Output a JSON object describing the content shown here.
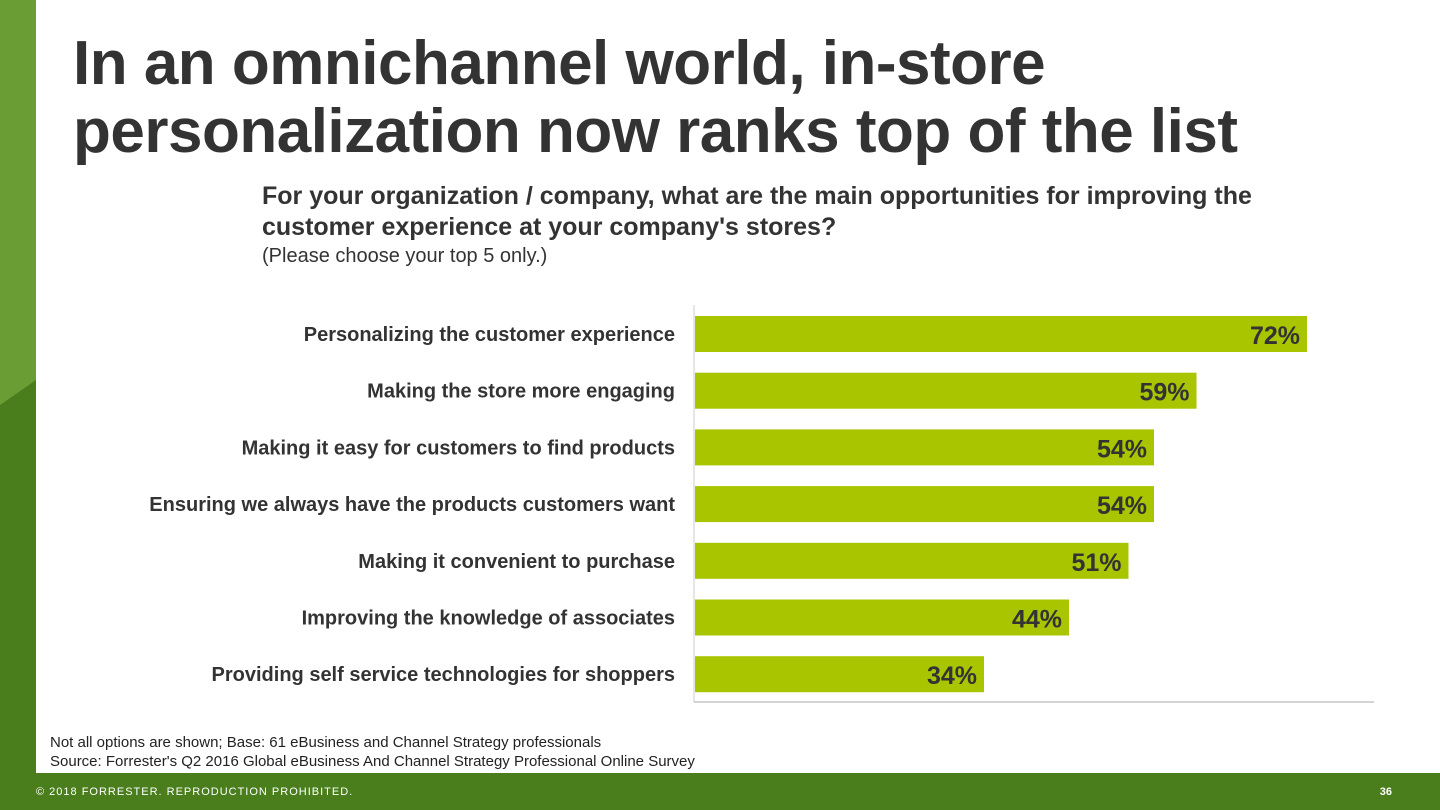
{
  "title": "In an omnichannel world, in-store personalization now ranks top of the list",
  "question": "For your organization / company, what are the main opportunities for improving the customer experience at your company's stores?",
  "question_note": "(Please choose your top 5 only.)",
  "footnote": "Not all options are shown; Base: 61 eBusiness and Channel Strategy professionals",
  "source": "Source: Forrester's Q2 2016 Global eBusiness And Channel Strategy Professional Online Survey",
  "footer": {
    "copyright": "© 2018 FORRESTER. REPRODUCTION PROHIBITED.",
    "page_number": "36"
  },
  "colors": {
    "bar": "#a8c500",
    "sidebar_light": "#6a9e35",
    "sidebar_dark": "#4a7e1d"
  },
  "chart_data": {
    "type": "bar",
    "orientation": "horizontal",
    "categories": [
      "Personalizing the customer experience",
      "Making the store more engaging",
      "Making it easy for customers to find products",
      "Ensuring we always have the products customers want",
      "Making it convenient to purchase",
      "Improving the knowledge of associates",
      "Providing self service technologies for shoppers"
    ],
    "values": [
      72,
      59,
      54,
      54,
      51,
      44,
      34
    ],
    "value_labels": [
      "72%",
      "59%",
      "54%",
      "54%",
      "51%",
      "44%",
      "34%"
    ],
    "xlim": [
      0,
      80
    ],
    "grid": false
  }
}
